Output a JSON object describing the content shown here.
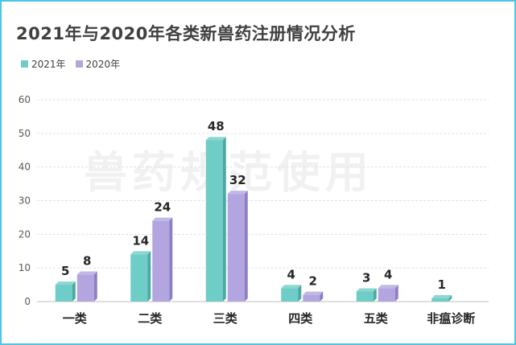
{
  "title": "2021年与2020年各类新兽药注册情况分析",
  "watermark": "兽药规范使用",
  "colors": {
    "s2021": "#6ecdc6",
    "s2021_side": "#4aa9a2",
    "s2020": "#b3a6e0",
    "s2020_side": "#8e7fc4",
    "border": "#4cc6e6"
  },
  "chart_data": {
    "type": "bar",
    "categories": [
      "一类",
      "二类",
      "三类",
      "四类",
      "五类",
      "非瘟诊断"
    ],
    "series": [
      {
        "name": "2021年",
        "values": [
          5,
          14,
          48,
          4,
          3,
          1
        ]
      },
      {
        "name": "2020年",
        "values": [
          8,
          24,
          32,
          2,
          4,
          null
        ]
      }
    ],
    "ylim": [
      0,
      60
    ],
    "yticks": [
      0,
      10,
      20,
      30,
      40,
      50,
      60
    ],
    "grid": true,
    "legend": "top-left"
  }
}
